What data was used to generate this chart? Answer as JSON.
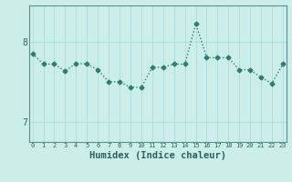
{
  "x": [
    0,
    1,
    2,
    3,
    4,
    5,
    6,
    7,
    8,
    9,
    10,
    11,
    12,
    13,
    14,
    15,
    16,
    17,
    18,
    19,
    20,
    21,
    22,
    23
  ],
  "y": [
    7.85,
    7.72,
    7.72,
    7.63,
    7.73,
    7.72,
    7.65,
    7.5,
    7.5,
    7.43,
    7.43,
    7.68,
    7.68,
    7.72,
    7.72,
    8.22,
    7.8,
    7.8,
    7.8,
    7.65,
    7.65,
    7.55,
    7.48,
    7.72
  ],
  "line_color": "#2e7d6e",
  "marker": "D",
  "markersize": 2.5,
  "linewidth": 1.0,
  "bg_color": "#cceee8",
  "grid_color": "#aadddd",
  "xlabel": "Humidex (Indice chaleur)",
  "xlabel_fontsize": 7.5,
  "ytick_labels": [
    "7",
    "8"
  ],
  "ytick_values": [
    7.0,
    8.0
  ],
  "xtick_values": [
    0,
    1,
    2,
    3,
    4,
    5,
    6,
    7,
    8,
    9,
    10,
    11,
    12,
    13,
    14,
    15,
    16,
    17,
    18,
    19,
    20,
    21,
    22,
    23
  ],
  "ylim": [
    6.75,
    8.45
  ],
  "xlim": [
    -0.3,
    23.3
  ]
}
